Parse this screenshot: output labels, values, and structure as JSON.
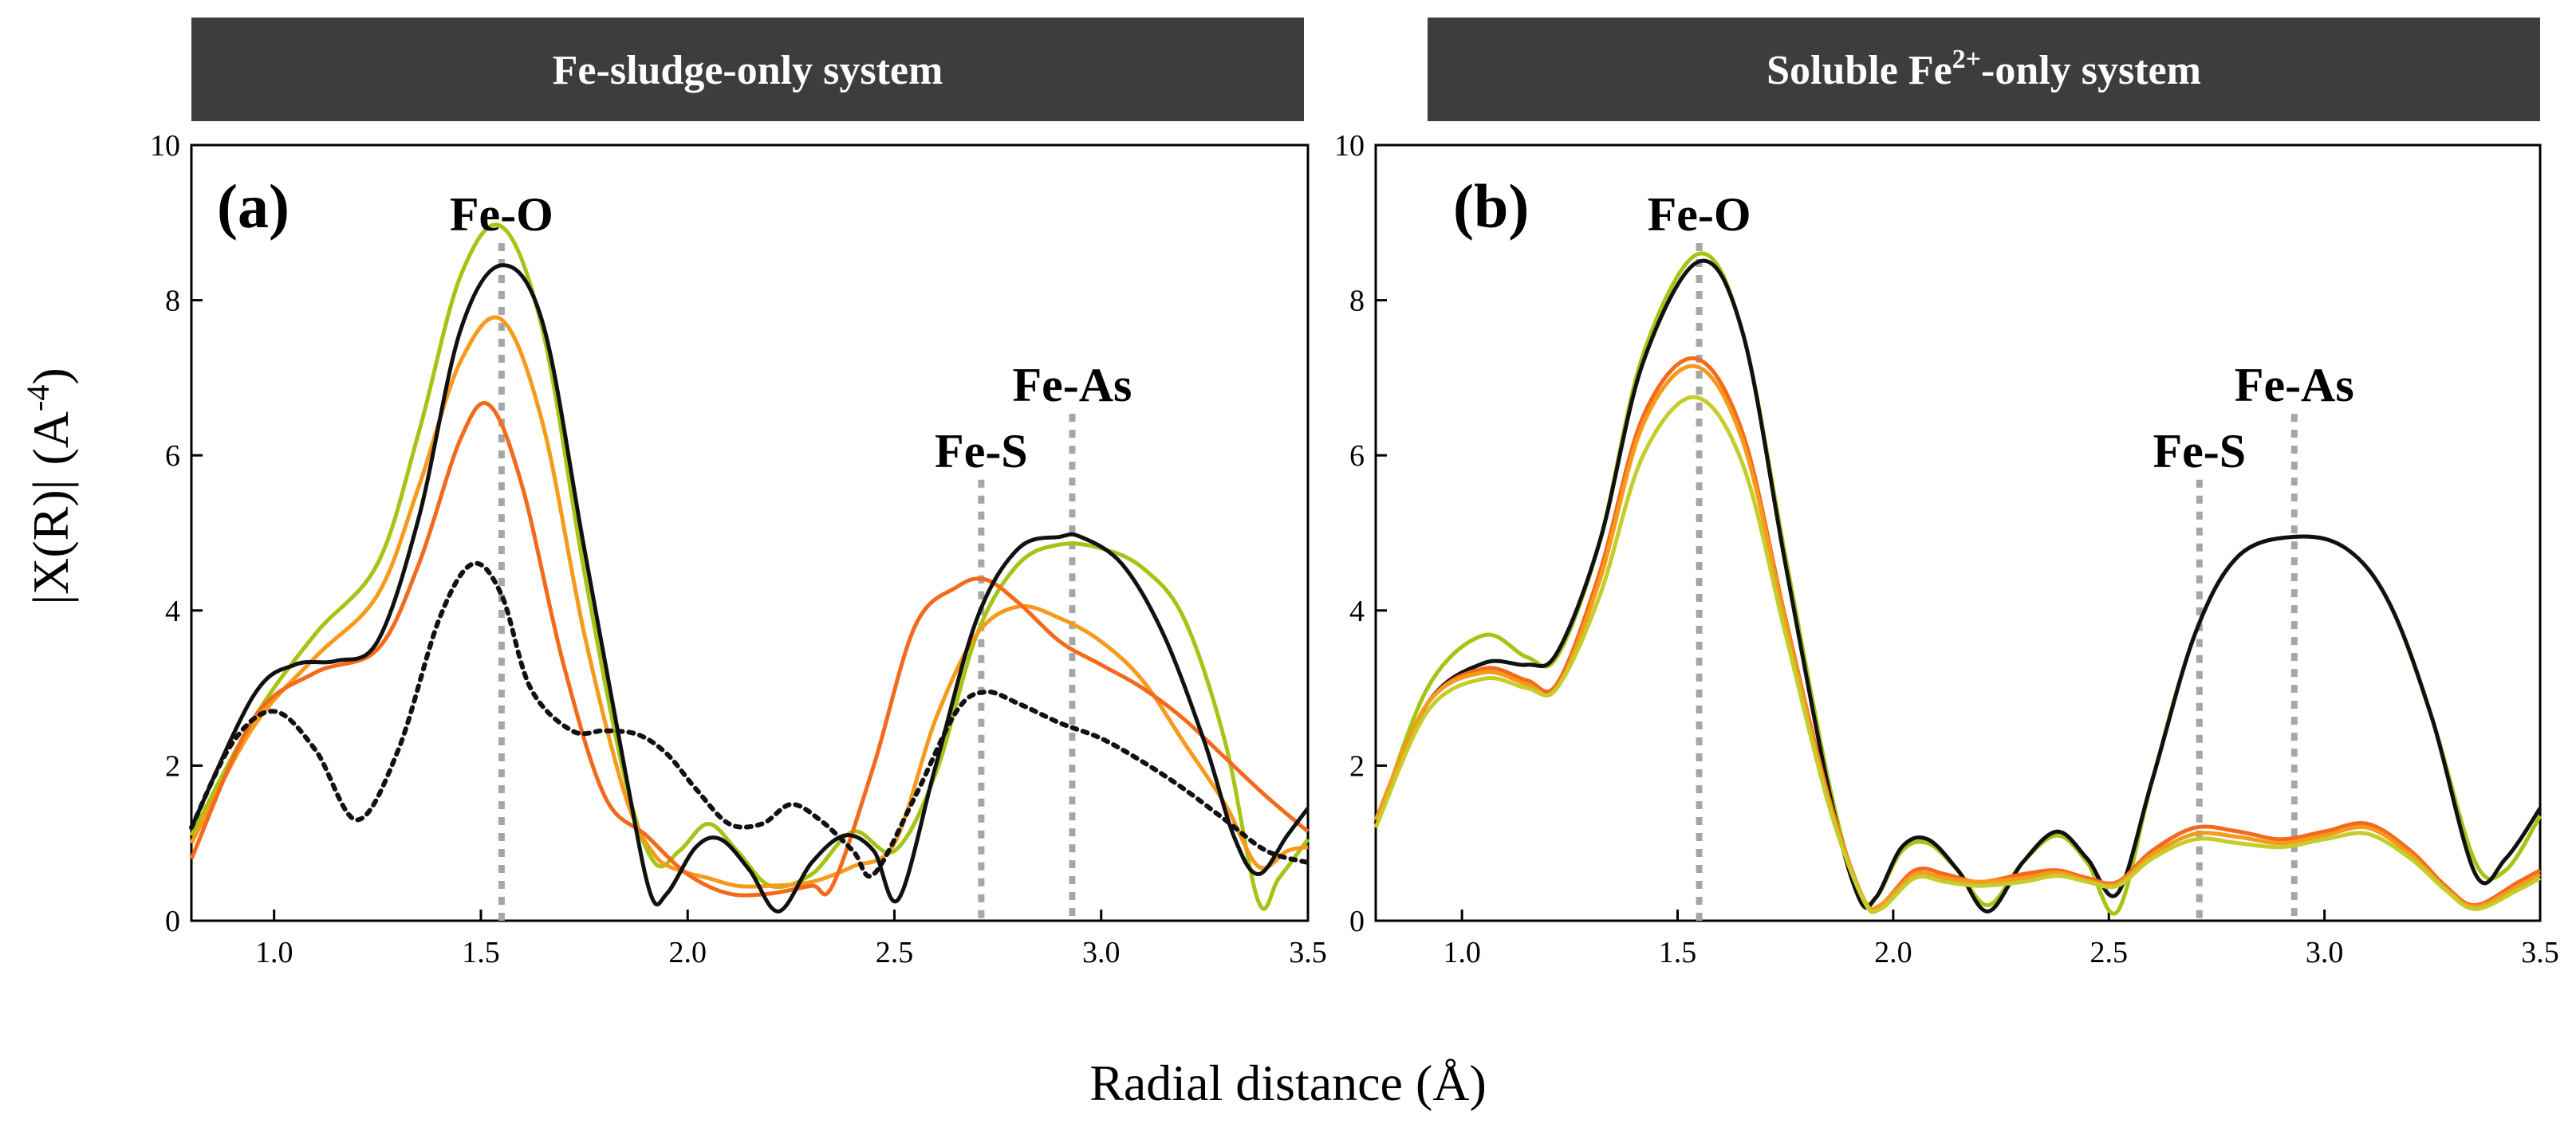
{
  "figure": {
    "x_axis_title": "Radial distance (Å)",
    "y_axis_title": {
      "prefix": "X(R)",
      "unit_base": "(A",
      "unit_exp": "-4",
      "unit_close": ")"
    }
  },
  "colors": {
    "banner": "#3d3d3d",
    "guide": "#a6a6a6",
    "lime": "#a5c413",
    "orange": "#f79a1b",
    "red_orange": "#f46a1d",
    "black": "#111111"
  },
  "chart_data": [
    {
      "type": "line",
      "panel_label": "(a)",
      "title": "Fe-sludge-only system",
      "title_main": "Fe-sludge-only system",
      "title_sup": "",
      "title_tail": "",
      "xlim": [
        0.8,
        3.5
      ],
      "ylim": [
        0,
        10
      ],
      "x_ticks": [
        "1.0",
        "1.5",
        "2.0",
        "2.5",
        "3.0",
        "3.5"
      ],
      "x_tick_values": [
        1.0,
        1.5,
        2.0,
        2.5,
        3.0,
        3.5
      ],
      "y_ticks": [
        "0",
        "2",
        "4",
        "6",
        "8",
        "10"
      ],
      "y_tick_values": [
        0,
        2,
        4,
        6,
        8,
        10
      ],
      "xlabel": "Radial distance (Å)",
      "ylabel": "|X(R)| (A-4)",
      "annotations": [
        {
          "label": "Fe-O",
          "x": 1.55
        },
        {
          "label": "Fe-S",
          "x": 2.71
        },
        {
          "label": "Fe-As",
          "x": 2.93
        }
      ],
      "series": [
        {
          "color": "#a5c413",
          "dash": false,
          "x": [
            0.8,
            0.95,
            1.1,
            1.25,
            1.35,
            1.45,
            1.55,
            1.65,
            1.75,
            1.85,
            1.92,
            1.98,
            2.05,
            2.12,
            2.2,
            2.3,
            2.4,
            2.5,
            2.6,
            2.7,
            2.8,
            2.9,
            3.0,
            3.1,
            3.2,
            3.3,
            3.38,
            3.43,
            3.5
          ],
          "y": [
            1.1,
            2.6,
            3.7,
            4.6,
            6.3,
            8.3,
            8.95,
            7.6,
            4.5,
            1.8,
            0.75,
            0.9,
            1.25,
            0.9,
            0.45,
            0.6,
            1.15,
            0.9,
            1.9,
            3.7,
            4.6,
            4.85,
            4.8,
            4.55,
            3.9,
            2.3,
            0.25,
            0.55,
            1.05
          ]
        },
        {
          "color": "#f79a1b",
          "dash": false,
          "x": [
            0.8,
            0.95,
            1.1,
            1.25,
            1.35,
            1.45,
            1.55,
            1.65,
            1.75,
            1.85,
            1.92,
            1.98,
            2.05,
            2.12,
            2.2,
            2.3,
            2.4,
            2.5,
            2.6,
            2.7,
            2.8,
            2.9,
            3.0,
            3.1,
            3.2,
            3.3,
            3.38,
            3.45,
            3.5
          ],
          "y": [
            1.0,
            2.5,
            3.4,
            4.2,
            5.6,
            7.2,
            7.75,
            6.4,
            3.7,
            1.6,
            0.85,
            0.65,
            0.55,
            0.45,
            0.45,
            0.5,
            0.7,
            1.0,
            2.6,
            3.7,
            4.05,
            3.9,
            3.6,
            3.1,
            2.3,
            1.5,
            0.7,
            0.9,
            0.95
          ]
        },
        {
          "color": "#f46a1d",
          "dash": false,
          "x": [
            0.8,
            0.95,
            1.1,
            1.25,
            1.35,
            1.45,
            1.52,
            1.6,
            1.7,
            1.8,
            1.9,
            2.0,
            2.1,
            2.2,
            2.3,
            2.35,
            2.45,
            2.55,
            2.65,
            2.72,
            2.8,
            2.9,
            3.0,
            3.1,
            3.2,
            3.3,
            3.4,
            3.5
          ],
          "y": [
            0.8,
            2.6,
            3.2,
            3.5,
            4.6,
            6.2,
            6.65,
            5.6,
            3.3,
            1.6,
            1.1,
            0.6,
            0.35,
            0.35,
            0.45,
            0.45,
            2.0,
            3.8,
            4.3,
            4.4,
            4.1,
            3.6,
            3.3,
            3.0,
            2.6,
            2.1,
            1.6,
            1.15
          ]
        },
        {
          "color": "#111111",
          "dash": false,
          "x": [
            0.8,
            0.95,
            1.05,
            1.15,
            1.25,
            1.35,
            1.45,
            1.55,
            1.65,
            1.75,
            1.85,
            1.91,
            1.95,
            2.02,
            2.08,
            2.15,
            2.22,
            2.3,
            2.38,
            2.45,
            2.51,
            2.6,
            2.7,
            2.8,
            2.9,
            2.95,
            3.05,
            3.15,
            3.25,
            3.32,
            3.38,
            3.45,
            3.5
          ],
          "y": [
            1.2,
            2.9,
            3.3,
            3.35,
            3.6,
            5.2,
            7.6,
            8.45,
            7.7,
            4.8,
            1.9,
            0.35,
            0.35,
            0.95,
            1.05,
            0.65,
            0.12,
            0.75,
            1.1,
            0.9,
            0.28,
            2.0,
            3.9,
            4.8,
            4.95,
            4.95,
            4.6,
            3.7,
            2.3,
            1.1,
            0.6,
            1.1,
            1.45
          ]
        },
        {
          "color": "#111111",
          "dash": true,
          "x": [
            0.8,
            0.9,
            1.0,
            1.1,
            1.2,
            1.3,
            1.4,
            1.48,
            1.55,
            1.62,
            1.72,
            1.8,
            1.88,
            1.95,
            2.02,
            2.1,
            2.18,
            2.25,
            2.32,
            2.4,
            2.45,
            2.55,
            2.65,
            2.72,
            2.8,
            2.9,
            3.0,
            3.1,
            3.2,
            3.3,
            3.4,
            3.5
          ],
          "y": [
            1.2,
            2.3,
            2.7,
            2.2,
            1.3,
            2.2,
            3.9,
            4.6,
            4.2,
            3.0,
            2.45,
            2.45,
            2.4,
            2.15,
            1.7,
            1.25,
            1.25,
            1.5,
            1.3,
            0.9,
            0.6,
            1.6,
            2.7,
            2.95,
            2.8,
            2.55,
            2.35,
            2.05,
            1.7,
            1.3,
            0.9,
            0.75
          ]
        }
      ]
    },
    {
      "type": "line",
      "panel_label": "(b)",
      "title": "Soluble Fe2+-only system",
      "title_main": "Soluble Fe",
      "title_sup": "2+",
      "title_tail": "-only system",
      "xlim": [
        0.8,
        3.5
      ],
      "ylim": [
        0,
        10
      ],
      "x_ticks": [
        "1.0",
        "1.5",
        "2.0",
        "2.5",
        "3.0",
        "3.5"
      ],
      "x_tick_values": [
        1.0,
        1.5,
        2.0,
        2.5,
        3.0,
        3.5
      ],
      "y_ticks": [
        "0",
        "2",
        "4",
        "6",
        "8",
        "10"
      ],
      "y_tick_values": [
        0,
        2,
        4,
        6,
        8,
        10
      ],
      "xlabel": "Radial distance (Å)",
      "ylabel": "|X(R)| (A-4)",
      "annotations": [
        {
          "label": "Fe-O",
          "x": 1.55
        },
        {
          "label": "Fe-S",
          "x": 2.71
        },
        {
          "label": "Fe-As",
          "x": 2.93
        }
      ],
      "series": [
        {
          "color": "#a5c413",
          "dash": false,
          "x": [
            0.8,
            0.92,
            1.05,
            1.15,
            1.22,
            1.32,
            1.42,
            1.55,
            1.65,
            1.75,
            1.85,
            1.92,
            1.96,
            2.02,
            2.08,
            2.15,
            2.22,
            2.3,
            2.38,
            2.45,
            2.52,
            2.6,
            2.7,
            2.8,
            2.93,
            3.05,
            3.15,
            3.25,
            3.35,
            3.42,
            3.5
          ],
          "y": [
            1.2,
            3.0,
            3.68,
            3.4,
            3.4,
            4.9,
            7.3,
            8.6,
            7.6,
            4.7,
            1.8,
            0.35,
            0.3,
            0.9,
            1.0,
            0.65,
            0.2,
            0.75,
            1.1,
            0.75,
            0.12,
            1.8,
            3.7,
            4.7,
            4.95,
            4.8,
            4.1,
            2.6,
            0.75,
            0.65,
            1.35
          ]
        },
        {
          "color": "#111111",
          "dash": false,
          "x": [
            0.8,
            0.92,
            1.05,
            1.15,
            1.22,
            1.32,
            1.42,
            1.55,
            1.65,
            1.75,
            1.85,
            1.92,
            1.96,
            2.02,
            2.08,
            2.15,
            2.22,
            2.3,
            2.38,
            2.45,
            2.52,
            2.6,
            2.7,
            2.8,
            2.93,
            3.05,
            3.15,
            3.25,
            3.35,
            3.42,
            3.5
          ],
          "y": [
            1.25,
            2.8,
            3.32,
            3.3,
            3.45,
            4.9,
            7.2,
            8.5,
            7.6,
            4.6,
            1.7,
            0.3,
            0.3,
            0.95,
            1.05,
            0.65,
            0.12,
            0.75,
            1.15,
            0.8,
            0.35,
            1.8,
            3.7,
            4.7,
            4.95,
            4.8,
            4.1,
            2.6,
            0.6,
            0.8,
            1.45
          ]
        },
        {
          "color": "#f46a1d",
          "dash": false,
          "x": [
            0.8,
            0.92,
            1.05,
            1.15,
            1.22,
            1.32,
            1.42,
            1.54,
            1.65,
            1.75,
            1.85,
            1.93,
            1.97,
            2.05,
            2.12,
            2.2,
            2.3,
            2.38,
            2.45,
            2.52,
            2.6,
            2.7,
            2.8,
            2.9,
            3.0,
            3.1,
            3.2,
            3.28,
            3.35,
            3.45,
            3.5
          ],
          "y": [
            1.3,
            2.8,
            3.25,
            3.1,
            3.05,
            4.5,
            6.5,
            7.25,
            6.3,
            3.9,
            1.6,
            0.3,
            0.2,
            0.65,
            0.6,
            0.5,
            0.6,
            0.65,
            0.55,
            0.5,
            0.9,
            1.2,
            1.15,
            1.05,
            1.15,
            1.25,
            0.9,
            0.45,
            0.2,
            0.5,
            0.65
          ]
        },
        {
          "color": "#f79a1b",
          "dash": false,
          "x": [
            0.8,
            0.92,
            1.05,
            1.15,
            1.22,
            1.32,
            1.42,
            1.54,
            1.65,
            1.75,
            1.85,
            1.93,
            1.97,
            2.05,
            2.12,
            2.2,
            2.3,
            2.38,
            2.45,
            2.52,
            2.6,
            2.7,
            2.8,
            2.9,
            3.0,
            3.1,
            3.2,
            3.28,
            3.35,
            3.45,
            3.5
          ],
          "y": [
            1.3,
            2.8,
            3.2,
            3.05,
            3.0,
            4.4,
            6.4,
            7.15,
            6.2,
            3.85,
            1.55,
            0.3,
            0.2,
            0.6,
            0.55,
            0.5,
            0.55,
            0.62,
            0.52,
            0.48,
            0.85,
            1.12,
            1.08,
            1.0,
            1.1,
            1.2,
            0.85,
            0.42,
            0.18,
            0.45,
            0.6
          ]
        },
        {
          "color": "#c6cc2a",
          "dash": false,
          "x": [
            0.8,
            0.92,
            1.05,
            1.15,
            1.22,
            1.32,
            1.42,
            1.54,
            1.65,
            1.75,
            1.85,
            1.93,
            1.97,
            2.05,
            2.12,
            2.2,
            2.3,
            2.38,
            2.45,
            2.52,
            2.6,
            2.7,
            2.8,
            2.9,
            3.0,
            3.1,
            3.2,
            3.28,
            3.35,
            3.45,
            3.5
          ],
          "y": [
            1.2,
            2.7,
            3.12,
            3.0,
            3.0,
            4.2,
            6.0,
            6.75,
            5.9,
            3.7,
            1.5,
            0.28,
            0.15,
            0.55,
            0.5,
            0.45,
            0.5,
            0.58,
            0.5,
            0.45,
            0.8,
            1.05,
            1.0,
            0.95,
            1.05,
            1.12,
            0.8,
            0.4,
            0.15,
            0.4,
            0.55
          ]
        }
      ]
    }
  ]
}
